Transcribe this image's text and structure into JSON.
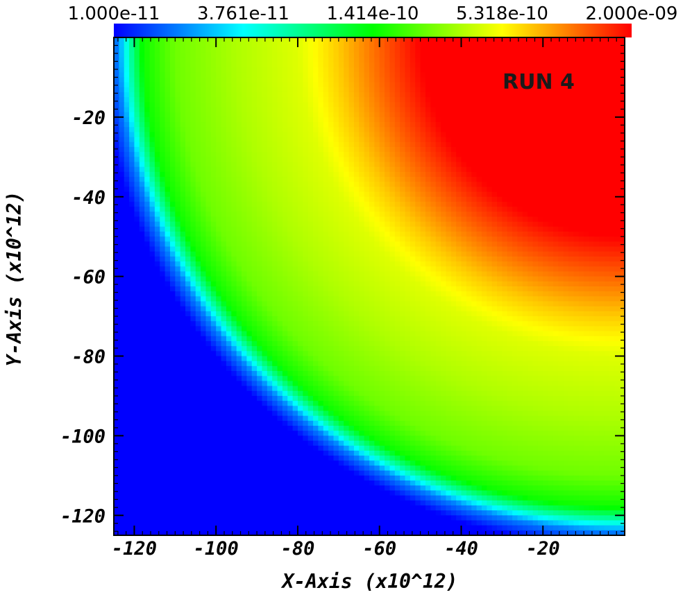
{
  "chart_data": {
    "type": "heatmap",
    "title": "",
    "xlabel": "X-Axis (x10^12)",
    "ylabel": "Y-Axis (x10^12)",
    "xlim": [
      -125,
      0
    ],
    "ylim": [
      -125,
      0
    ],
    "x_ticks": [
      -120,
      -100,
      -80,
      -60,
      -40,
      -20
    ],
    "y_ticks": [
      -20,
      -40,
      -60,
      -80,
      -100,
      -120
    ],
    "x_tick_labels": [
      "-120",
      "-100",
      "-80",
      "-60",
      "-40",
      "-20"
    ],
    "y_tick_labels": [
      "-20",
      "-40",
      "-60",
      "-80",
      "-100",
      "-120"
    ],
    "colorbar": {
      "scale": "log",
      "min": 1e-11,
      "max": 2e-09,
      "tick_values": [
        1e-11,
        3.761e-11,
        1.414e-10,
        5.318e-10,
        2e-09
      ],
      "tick_labels": [
        "1.000e-11",
        "3.761e-11",
        "1.414e-10",
        "5.318e-10",
        "2.000e-09"
      ],
      "colormap": [
        "#0000ff",
        "#00ffff",
        "#00ff00",
        "#ffff00",
        "#ff0000"
      ],
      "placement": "top"
    },
    "annotation": "RUN 4",
    "annotation_color": "#1a1a1a",
    "field": {
      "description_profile": "radial value vs distance from the (0,0) corner",
      "radius": [
        0,
        50,
        60,
        70,
        80,
        95,
        110,
        118,
        121,
        124,
        128,
        200
      ],
      "value": [
        2e-09,
        2e-09,
        1.2e-09,
        7e-10,
        4.5e-10,
        3.5e-10,
        2.5e-10,
        1.5e-10,
        6e-11,
        2e-11,
        1e-11,
        1e-11
      ]
    }
  }
}
